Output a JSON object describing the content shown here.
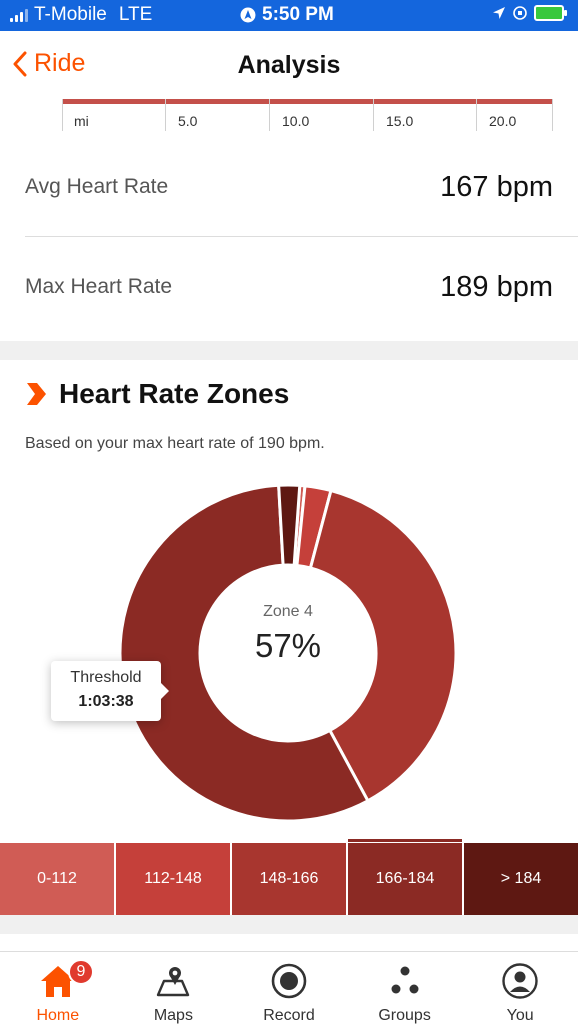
{
  "status_bar": {
    "carrier": "T-Mobile",
    "network": "LTE",
    "time": "5:50 PM"
  },
  "nav": {
    "back_label": "Ride",
    "title": "Analysis"
  },
  "axis": {
    "unit": "mi",
    "ticks": [
      "5.0",
      "10.0",
      "15.0",
      "20.0"
    ]
  },
  "stats": {
    "avg_hr_label": "Avg Heart Rate",
    "avg_hr_value": "167 bpm",
    "max_hr_label": "Max Heart Rate",
    "max_hr_value": "189 bpm"
  },
  "zones": {
    "title": "Heart Rate Zones",
    "subtitle": "Based on your max heart rate of 190 bpm.",
    "center_zone": "Zone 4",
    "center_pct": "57%",
    "tooltip_label": "Threshold",
    "tooltip_value": "1:03:38",
    "selected_index": 3,
    "ranges": [
      {
        "label": "0-112",
        "color": "#d05c55",
        "pct": 0.5
      },
      {
        "label": "112-148",
        "color": "#c5403a",
        "pct": 2.5
      },
      {
        "label": "148-166",
        "color": "#a8362f",
        "pct": 38
      },
      {
        "label": "166-184",
        "color": "#8b2a24",
        "pct": 57
      },
      {
        "label": "> 184",
        "color": "#5e1812",
        "pct": 2
      }
    ]
  },
  "tabbar": {
    "items": [
      {
        "label": "Home",
        "icon": "home-icon",
        "active": true,
        "badge": "9"
      },
      {
        "label": "Maps",
        "icon": "maps-icon",
        "active": false
      },
      {
        "label": "Record",
        "icon": "record-icon",
        "active": false
      },
      {
        "label": "Groups",
        "icon": "groups-icon",
        "active": false
      },
      {
        "label": "You",
        "icon": "profile-icon",
        "active": false
      }
    ]
  },
  "colors": {
    "brand": "#fc5200",
    "status_bar": "#1466dd"
  }
}
